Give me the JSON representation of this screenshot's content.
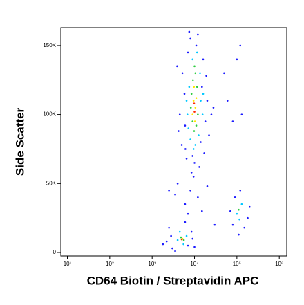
{
  "chart_data": {
    "type": "scatter",
    "x_label": "CD64 Biotin / Streptavidin APC",
    "y_label": "Side Scatter",
    "xscale": "log",
    "xlim": [
      7,
      1500000
    ],
    "ylim": [
      -2500,
      163000
    ],
    "xticks": [
      {
        "value": 10,
        "label": "10¹"
      },
      {
        "value": 100,
        "label": "10²"
      },
      {
        "value": 1000,
        "label": "10³"
      },
      {
        "value": 10000,
        "label": "10⁴"
      },
      {
        "value": 100000,
        "label": "10⁵"
      },
      {
        "value": 1000000,
        "label": "10⁶"
      }
    ],
    "yticks": [
      0,
      {
        "value": 50000,
        "label": "50K"
      },
      {
        "value": 100000,
        "label": "100K"
      },
      {
        "value": 150000,
        "label": "150K"
      }
    ],
    "series": [
      {
        "color": "#1a1aff",
        "x": [
          5200,
          6100,
          7000,
          15000,
          18000,
          4500,
          20000,
          6500,
          13000,
          8000,
          12000,
          16000,
          5800,
          22000,
          9000,
          4200,
          17000,
          11000,
          7500,
          25000,
          14000,
          6000,
          19000,
          10000,
          3900,
          28000,
          8500,
          5000,
          4000,
          8000,
          12000,
          6000,
          15000,
          9500,
          3500,
          20000,
          7000,
          30000,
          2500,
          2200,
          2800,
          7000,
          9000,
          3000,
          8500,
          2500,
          6000,
          3500,
          10000,
          1800,
          70000,
          180000,
          90000,
          150000,
          120000,
          200000,
          80000,
          110000,
          100000,
          120000,
          60000,
          80000,
          130000,
          50000
        ],
        "values": [
          130000,
          75000,
          145000,
          120000,
          95000,
          100000,
          110000,
          68000,
          62000,
          155000,
          158000,
          140000,
          115000,
          85000,
          70000,
          88000,
          72000,
          150000,
          160000,
          100000,
          80000,
          92000,
          128000,
          65000,
          135000,
          105000,
          58000,
          78000,
          50000,
          45000,
          40000,
          35000,
          30000,
          55000,
          42000,
          48000,
          28000,
          20000,
          45000,
          8000,
          12000,
          5000,
          10000,
          3000,
          15000,
          18000,
          22000,
          1000,
          4000,
          6000,
          30000,
          25000,
          40000,
          18000,
          45000,
          33000,
          20000,
          13000,
          140000,
          150000,
          110000,
          95000,
          100000,
          130000
        ]
      },
      {
        "color": "#00c8ff",
        "x": [
          7500,
          14000,
          6800,
          13500,
          8000,
          12500,
          9000,
          11500,
          7200,
          15500,
          9500,
          10500,
          6500,
          16000,
          4000,
          6500,
          4500,
          5500,
          100000,
          130000,
          115000
        ],
        "values": [
          120000,
          110000,
          100000,
          130000,
          82000,
          85000,
          140000,
          145000,
          90000,
          100000,
          75000,
          78000,
          110000,
          115000,
          9000,
          12000,
          15000,
          6000,
          28000,
          35000,
          24000
        ]
      },
      {
        "color": "#2ecc40",
        "x": [
          8500,
          11500,
          9000,
          12000,
          8200,
          10500,
          9800,
          11000,
          9200,
          10000,
          4800,
          5600,
          110000
        ],
        "values": [
          115000,
          120000,
          95000,
          100000,
          105000,
          130000,
          88000,
          92000,
          125000,
          135000,
          11000,
          9000,
          31000
        ]
      },
      {
        "color": "#ffe600",
        "x": [
          9500,
          10500,
          9000,
          11000,
          10200,
          9700,
          5200
        ],
        "values": [
          110000,
          105000,
          100000,
          112000,
          95000,
          120000,
          10000
        ]
      },
      {
        "color": "#ff2a00",
        "x": [
          10000,
          9800,
          5000
        ],
        "values": [
          102000,
          108000,
          9500
        ]
      }
    ]
  }
}
